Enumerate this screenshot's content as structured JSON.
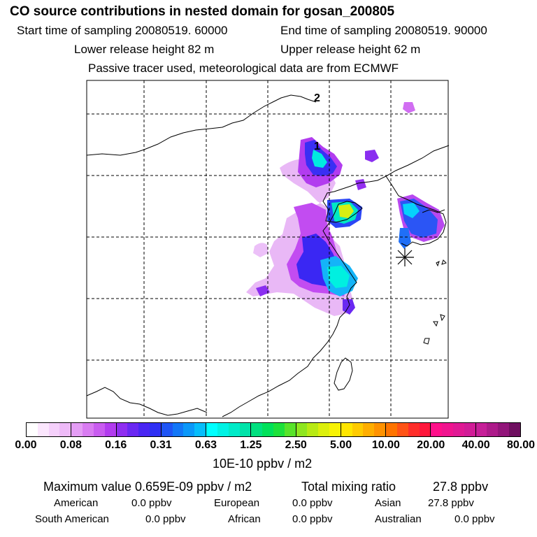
{
  "header": {
    "title": "CO  source contributions in nested domain for gosan_200805",
    "start_time": "Start time of sampling 20080519. 60000",
    "end_time": "End time of sampling 20080519. 90000",
    "lower_release": "Lower release height   82 m",
    "upper_release": "Upper release height   62 m",
    "tracer_note": "Passive tracer used, meteorological data are from ECMWF"
  },
  "map": {
    "labels": [
      "1",
      "2"
    ],
    "receptor_marker": "receptor-star",
    "colors": {
      "coast": "#000000",
      "grid": "#000000"
    }
  },
  "colorbar": {
    "ticks": [
      "0.00",
      "0.08",
      "0.16",
      "0.31",
      "0.63",
      "1.25",
      "2.50",
      "5.00",
      "10.00",
      "20.00",
      "40.00",
      "80.00"
    ],
    "unit": "10E-10 ppbv / m2",
    "segments": [
      [
        "#ffffff",
        "#fbe6fd",
        "#f5d0fb",
        "#eebaf8"
      ],
      [
        "#e49df5",
        "#d97cf2",
        "#c95cf0",
        "#b23cef"
      ],
      [
        "#8f2ef0",
        "#6a28f2",
        "#4a26f3",
        "#2f30f4"
      ],
      [
        "#1f55f5",
        "#1377f7",
        "#0b98f9",
        "#06bdfb"
      ],
      [
        "#00ffff",
        "#00f2e4",
        "#00eac8",
        "#00e3a9"
      ],
      [
        "#00e07f",
        "#00e15a",
        "#1de13b",
        "#58e32a"
      ],
      [
        "#8ee61f",
        "#b8ea14",
        "#dcef0c",
        "#f8f305"
      ],
      [
        "#ffe600",
        "#ffcb00",
        "#ffae00",
        "#ff9200"
      ],
      [
        "#ff7400",
        "#ff5316",
        "#ff2e2a",
        "#ff173c"
      ],
      [
        "#ff108a",
        "#f0148f",
        "#e01994",
        "#d11c97"
      ],
      [
        "#c61f98",
        "#ad1a8a",
        "#92157a",
        "#6f0f60"
      ]
    ]
  },
  "summary": {
    "max_label": "Maximum value  0.659E-09 ppbv / m2",
    "total_label": "Total mixing ratio",
    "total_value": "27.8 ppbv"
  },
  "sources": {
    "american_label": "American",
    "american_value": "0.0 ppbv",
    "european_label": "European",
    "european_value": "0.0 ppbv",
    "asian_label": "Asian",
    "asian_value": "27.8 ppbv",
    "south_american_label": "South American",
    "south_american_value": "0.0 ppbv",
    "african_label": "African",
    "african_value": "0.0 ppbv",
    "australian_label": "Australian",
    "australian_value": "0.0 ppbv"
  }
}
